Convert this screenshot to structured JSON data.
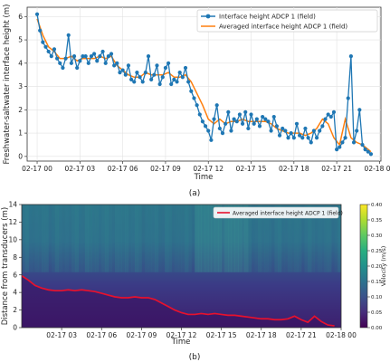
{
  "chart_data": [
    {
      "panel": "(a)",
      "type": "line",
      "xlabel": "Time",
      "ylabel": "Freshwater-saltwater interface height (m)",
      "xlim": [
        "02-17 00",
        "02-18 00"
      ],
      "ylim": [
        0,
        6.4
      ],
      "xticks": [
        "02-17 00",
        "02-17 03",
        "02-17 06",
        "02-17 09",
        "02-17 12",
        "02-17 15",
        "02-17 18",
        "02-17 21",
        "02-18 00"
      ],
      "yticks": [
        "0",
        "1",
        "2",
        "3",
        "4",
        "5",
        "6"
      ],
      "grid": true,
      "legend": "top-right",
      "series": [
        {
          "name": "Interface height ADCP 1 (field)",
          "color": "#1f77b4",
          "marker": "circle",
          "x_hours": [
            0.0,
            0.2,
            0.4,
            0.6,
            0.8,
            1.0,
            1.2,
            1.4,
            1.6,
            1.8,
            2.0,
            2.2,
            2.4,
            2.6,
            2.8,
            3.0,
            3.2,
            3.4,
            3.6,
            3.8,
            4.0,
            4.2,
            4.4,
            4.6,
            4.8,
            5.0,
            5.2,
            5.4,
            5.6,
            5.8,
            6.0,
            6.2,
            6.4,
            6.6,
            6.8,
            7.0,
            7.2,
            7.4,
            7.6,
            7.8,
            8.0,
            8.2,
            8.4,
            8.6,
            8.8,
            9.0,
            9.2,
            9.4,
            9.6,
            9.8,
            10.0,
            10.2,
            10.4,
            10.6,
            10.8,
            11.0,
            11.2,
            11.4,
            11.6,
            11.8,
            12.0,
            12.2,
            12.4,
            12.6,
            12.8,
            13.0,
            13.2,
            13.4,
            13.6,
            13.8,
            14.0,
            14.2,
            14.4,
            14.6,
            14.8,
            15.0,
            15.2,
            15.4,
            15.6,
            15.8,
            16.0,
            16.2,
            16.4,
            16.6,
            16.8,
            17.0,
            17.2,
            17.4,
            17.6,
            17.8,
            18.0,
            18.2,
            18.4,
            18.6,
            18.8,
            19.0,
            19.2,
            19.4,
            19.6,
            19.8,
            20.0,
            20.2,
            20.4,
            20.6,
            20.8,
            21.0,
            21.2,
            21.4,
            21.6,
            21.8,
            22.0,
            22.2,
            22.4,
            22.6,
            22.8,
            23.0,
            23.2,
            23.4
          ],
          "values": [
            6.1,
            5.4,
            4.9,
            4.7,
            4.5,
            4.3,
            4.6,
            4.2,
            4.0,
            3.8,
            4.2,
            5.2,
            4.0,
            4.3,
            3.8,
            4.1,
            4.3,
            4.3,
            4.0,
            4.3,
            4.4,
            4.1,
            4.3,
            4.5,
            4.0,
            4.3,
            4.4,
            3.9,
            4.0,
            3.6,
            3.7,
            3.5,
            3.9,
            3.3,
            3.2,
            3.6,
            3.4,
            3.2,
            3.6,
            4.3,
            3.3,
            3.5,
            3.9,
            3.1,
            3.4,
            3.8,
            4.0,
            3.1,
            3.3,
            3.2,
            3.6,
            3.4,
            3.8,
            3.2,
            2.8,
            2.5,
            2.2,
            1.8,
            1.5,
            1.3,
            1.1,
            0.7,
            1.6,
            2.2,
            1.2,
            1.0,
            1.4,
            1.9,
            1.1,
            1.6,
            1.5,
            1.8,
            1.4,
            1.9,
            1.2,
            1.8,
            1.4,
            1.6,
            1.3,
            1.7,
            1.6,
            1.5,
            1.1,
            1.7,
            1.3,
            0.9,
            1.2,
            1.1,
            0.8,
            1.0,
            0.8,
            1.4,
            0.9,
            0.8,
            1.2,
            0.8,
            0.6,
            1.1,
            0.8,
            1.1,
            1.3,
            1.6,
            1.8,
            1.7,
            1.9,
            0.3,
            0.4,
            0.6,
            0.8,
            2.5,
            4.3,
            0.6,
            1.1,
            2.0,
            0.5,
            0.3,
            0.2,
            0.1
          ]
        },
        {
          "name": "Averaged interface height ADCP 1 (field)",
          "color": "#ff7f0e",
          "x_hours": [
            0.0,
            0.4,
            0.8,
            1.2,
            1.6,
            2.0,
            2.4,
            2.8,
            3.2,
            3.6,
            4.0,
            4.4,
            4.8,
            5.2,
            5.6,
            6.0,
            6.4,
            6.8,
            7.2,
            7.6,
            8.0,
            8.4,
            8.8,
            9.2,
            9.6,
            10.0,
            10.4,
            10.8,
            11.2,
            11.6,
            12.0,
            12.4,
            12.8,
            13.2,
            13.6,
            14.0,
            14.4,
            14.8,
            15.2,
            15.6,
            16.0,
            16.4,
            16.8,
            17.2,
            17.6,
            18.0,
            18.4,
            18.8,
            19.2,
            19.6,
            20.0,
            20.4,
            20.8,
            21.2,
            21.6,
            22.0,
            22.4,
            22.8,
            23.2,
            23.4
          ],
          "values": [
            5.9,
            5.2,
            4.7,
            4.5,
            4.2,
            4.2,
            4.3,
            4.1,
            4.2,
            4.2,
            4.2,
            4.3,
            4.2,
            4.3,
            3.9,
            3.7,
            3.5,
            3.4,
            3.4,
            3.6,
            3.5,
            3.5,
            3.5,
            3.6,
            3.4,
            3.4,
            3.5,
            3.2,
            2.7,
            2.2,
            1.6,
            1.4,
            1.6,
            1.4,
            1.5,
            1.5,
            1.6,
            1.5,
            1.5,
            1.5,
            1.5,
            1.4,
            1.2,
            1.1,
            1.0,
            1.0,
            1.0,
            0.9,
            1.0,
            1.2,
            1.6,
            1.4,
            0.8,
            0.5,
            1.6,
            0.8,
            0.6,
            0.5,
            0.3,
            0.2
          ]
        }
      ]
    },
    {
      "panel": "(b)",
      "type": "heatmap",
      "xlabel": "Time",
      "ylabel": "Distance from transducers (m)",
      "xlim": [
        "02-17 00",
        "02-18 00"
      ],
      "ylim": [
        0,
        14
      ],
      "xticks": [
        "02-17 03",
        "02-17 06",
        "02-17 09",
        "02-17 12",
        "02-17 15",
        "02-17 18",
        "02-17 21",
        "02-18 00"
      ],
      "yticks": [
        "0",
        "2",
        "4",
        "6",
        "8",
        "10",
        "12",
        "14"
      ],
      "colorbar": {
        "label": "Velocity (m/s)",
        "min": 0.0,
        "max": 0.4,
        "ticks": [
          "0.00",
          "0.05",
          "0.10",
          "0.15",
          "0.20",
          "0.25",
          "0.30",
          "0.35",
          "0.40"
        ],
        "colormap": "viridis"
      },
      "legend": "top-right",
      "series": [
        {
          "name": "Averaged interface height ADCP 1 (field)",
          "color": "#e8112d",
          "x_hours": [
            0.0,
            0.5,
            1.0,
            1.5,
            2.0,
            2.5,
            3.0,
            3.5,
            4.0,
            4.5,
            5.0,
            5.5,
            6.0,
            6.5,
            7.0,
            7.5,
            8.0,
            8.5,
            9.0,
            9.5,
            10.0,
            10.5,
            11.0,
            11.5,
            12.0,
            12.5,
            13.0,
            13.5,
            14.0,
            14.5,
            15.0,
            15.5,
            16.0,
            16.5,
            17.0,
            17.5,
            18.0,
            18.5,
            19.0,
            19.5,
            20.0,
            20.5,
            21.0,
            21.5,
            22.0,
            22.5,
            23.0,
            23.5
          ],
          "values": [
            5.9,
            5.4,
            4.8,
            4.5,
            4.3,
            4.2,
            4.2,
            4.3,
            4.2,
            4.3,
            4.2,
            4.1,
            3.9,
            3.7,
            3.5,
            3.4,
            3.4,
            3.5,
            3.4,
            3.4,
            3.2,
            2.8,
            2.4,
            2.0,
            1.7,
            1.5,
            1.5,
            1.6,
            1.5,
            1.6,
            1.5,
            1.4,
            1.4,
            1.3,
            1.2,
            1.1,
            1.0,
            1.0,
            0.9,
            0.9,
            1.0,
            1.3,
            0.9,
            0.6,
            1.3,
            0.7,
            0.3,
            0.2
          ]
        }
      ]
    }
  ],
  "captions": {
    "a": "(a)",
    "b": "(b)"
  }
}
